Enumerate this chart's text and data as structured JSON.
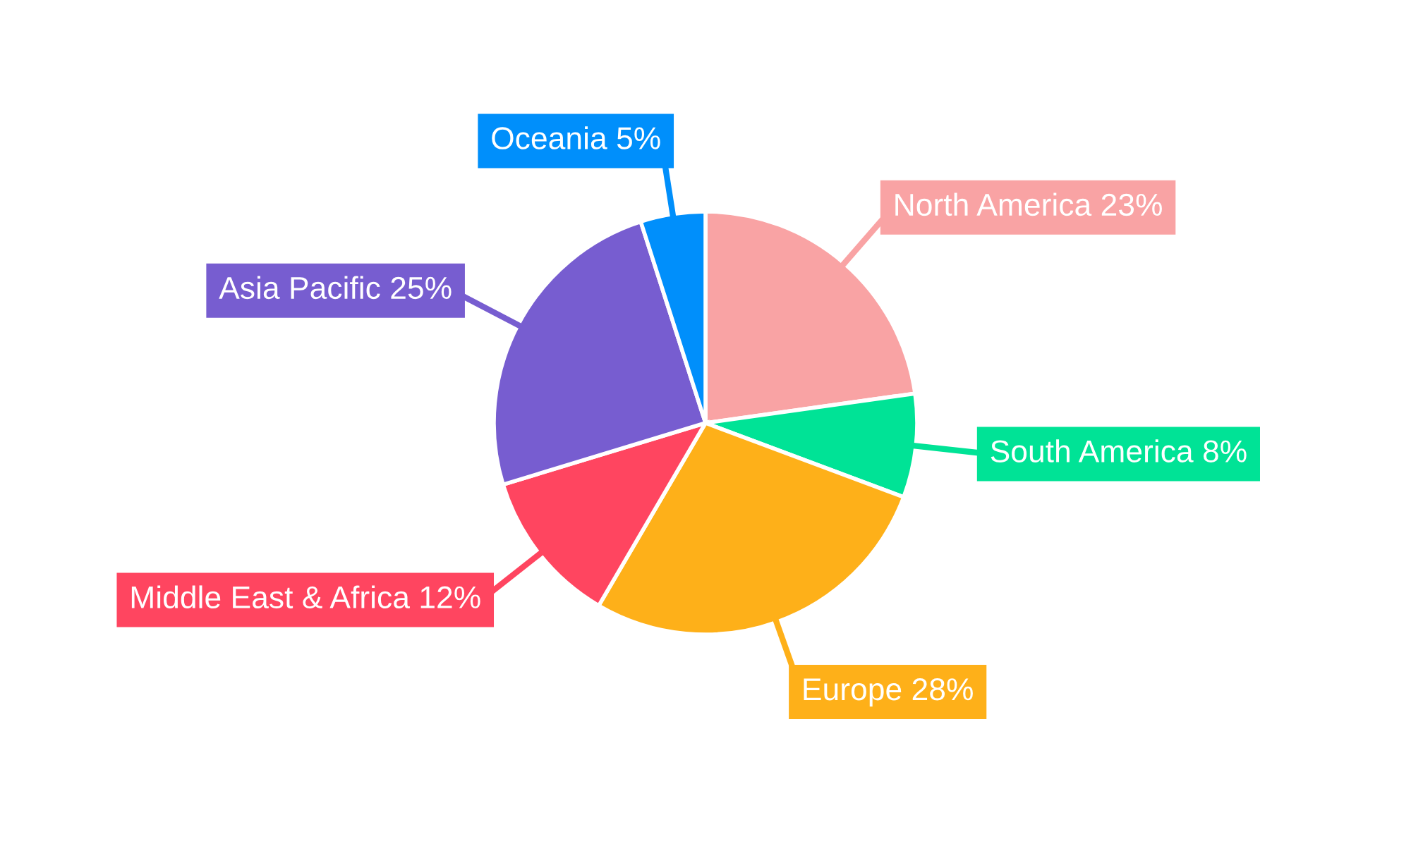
{
  "chart_data": {
    "type": "pie",
    "categories": [
      "North America",
      "South America",
      "Europe",
      "Middle East & Africa",
      "Asia Pacific",
      "Oceania"
    ],
    "values": [
      23,
      8,
      28,
      12,
      25,
      5
    ],
    "colors": [
      "#f9a3a4",
      "#00e396",
      "#feb019",
      "#ff4560",
      "#775dd0",
      "#008ffb"
    ],
    "value_labels": [
      "23%",
      "8%",
      "28%",
      "12%",
      "25%",
      "5%"
    ]
  }
}
